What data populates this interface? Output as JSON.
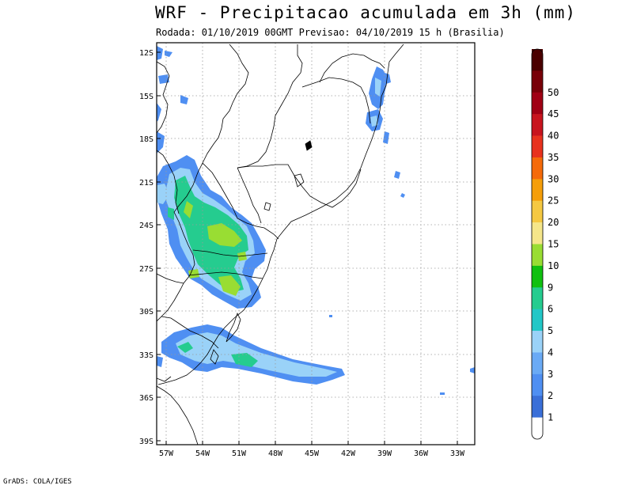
{
  "title": "WRF - Precipitacao acumulada em 3h (mm)",
  "subtitle": "Rodada: 01/10/2019 00GMT Previsao: 04/10/2019 15 h (Brasilia)",
  "credit": "GrADS: COLA/IGES",
  "map": {
    "lat_labels": [
      "12S",
      "15S",
      "18S",
      "21S",
      "24S",
      "27S",
      "30S",
      "33S",
      "36S",
      "39S"
    ],
    "lon_labels": [
      "57W",
      "54W",
      "51W",
      "48W",
      "45W",
      "42W",
      "39W",
      "36W",
      "33W"
    ]
  },
  "legend": {
    "labels": [
      "1",
      "2",
      "3",
      "4",
      "5",
      "6",
      "9",
      "10",
      "15",
      "20",
      "25",
      "30",
      "35",
      "40",
      "45",
      "50"
    ],
    "colors": [
      "#ffffff",
      "#3a6fd8",
      "#4f8ff2",
      "#6aaaf5",
      "#9ad2f8",
      "#22c7c7",
      "#25cc8f",
      "#10c010",
      "#99dd33",
      "#f5e68a",
      "#f5c842",
      "#f59e0a",
      "#f56a0a",
      "#e8321e",
      "#c8141e",
      "#a00014",
      "#780008",
      "#4a0000"
    ]
  },
  "colors": {
    "light_blue": "#9ad2f8",
    "blue": "#4f8ff2",
    "dark_blue": "#3a6fd8",
    "teal": "#22c7c7",
    "green": "#25cc8f",
    "lime": "#99dd33"
  }
}
